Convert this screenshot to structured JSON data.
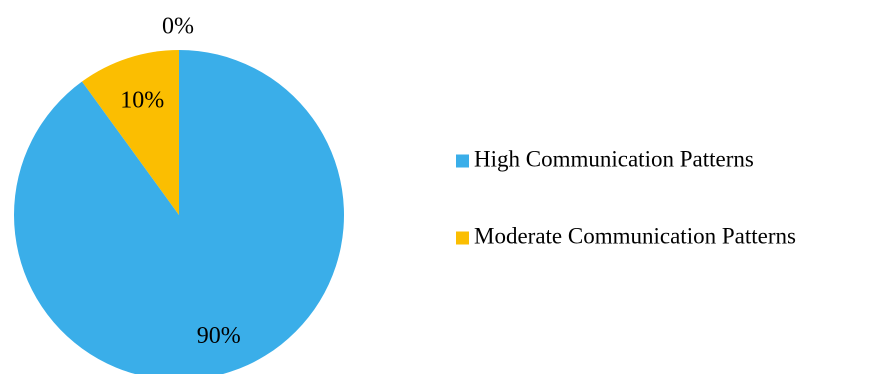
{
  "chart_data": {
    "type": "pie",
    "title": "",
    "series": [
      {
        "name": "High Communication Patterns",
        "value": 90,
        "label": "90%",
        "color": "#3AAEE9"
      },
      {
        "name": "Moderate Communication Patterns",
        "value": 10,
        "label": "10%",
        "color": "#FBBE01"
      },
      {
        "name": "",
        "value": 0,
        "label": "0%",
        "color": "#A5A5A5"
      }
    ],
    "legend": {
      "placement": "right",
      "entries": [
        "High Communication Patterns",
        "Moderate Communication Patterns"
      ]
    }
  }
}
